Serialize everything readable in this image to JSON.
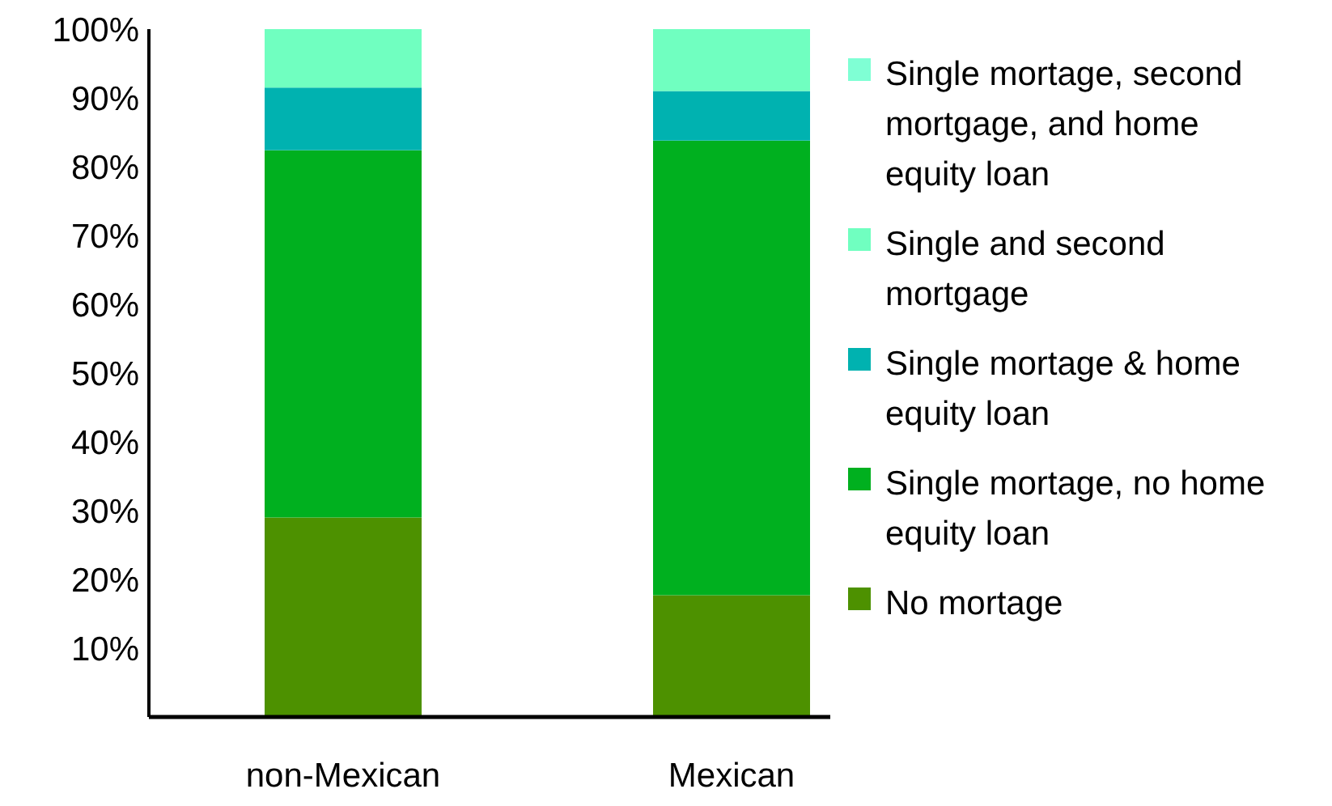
{
  "chart_data": {
    "type": "bar",
    "stacked": true,
    "categories": [
      "non-Mexican",
      "Mexican"
    ],
    "series": [
      {
        "name": "No mortage",
        "color": "#4d9100",
        "values": [
          29.0,
          17.7
        ]
      },
      {
        "name": "Single mortage, no home equity loan",
        "color": "#00b01f",
        "values": [
          53.4,
          66.1
        ]
      },
      {
        "name": "Single mortage & home equity loan",
        "color": "#00b2b0",
        "values": [
          9.1,
          7.2
        ]
      },
      {
        "name": "Single and second mortgage",
        "color": "#70ffc0",
        "values": [
          8.5,
          9.0
        ]
      },
      {
        "name": "Single mortage, second mortgage, and home equity loan",
        "color": "#7fffd4",
        "values": [
          0,
          0
        ]
      }
    ],
    "ylim": [
      0,
      100
    ],
    "yticks": [
      {
        "value": 10,
        "label": "10%"
      },
      {
        "value": 20,
        "label": "20%"
      },
      {
        "value": 30,
        "label": "30%"
      },
      {
        "value": 40,
        "label": "40%"
      },
      {
        "value": 50,
        "label": "50%"
      },
      {
        "value": 60,
        "label": "60%"
      },
      {
        "value": 70,
        "label": "70%"
      },
      {
        "value": 80,
        "label": "80%"
      },
      {
        "value": 90,
        "label": "90%"
      },
      {
        "value": 100,
        "label": "100%"
      }
    ],
    "legend": "right"
  }
}
